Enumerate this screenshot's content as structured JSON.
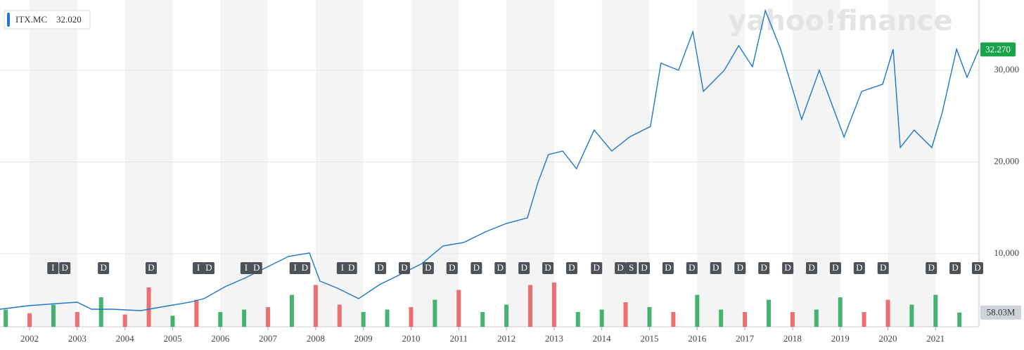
{
  "chart_data": {
    "type": "line",
    "watermark": "yahoo!finance",
    "legend": {
      "name": "ITX.MC",
      "value": {
        "value": 32020,
        "label": "32.020"
      }
    },
    "last_price": {
      "value": 32270,
      "label": "32.270"
    },
    "last_volume": {
      "value": 58.03,
      "label": "58.03M"
    },
    "xlim": [
      2001.38,
      2021.91
    ],
    "xticks": [
      2002,
      2003,
      2004,
      2005,
      2006,
      2007,
      2008,
      2009,
      2010,
      2011,
      2012,
      2013,
      2014,
      2015,
      2016,
      2017,
      2018,
      2019,
      2020,
      2021
    ],
    "ylim": [
      2030,
      37660
    ],
    "yticks": [
      {
        "value": 10000,
        "label": "10,000"
      },
      {
        "value": 20000,
        "label": "20,000"
      },
      {
        "value": 30000,
        "label": "30,000"
      }
    ],
    "grid": true,
    "x": [
      2001.38,
      2001.97,
      2002.56,
      2003.0,
      2003.3,
      2003.74,
      2004.33,
      2004.92,
      2005.36,
      2005.66,
      2006.1,
      2006.54,
      2006.98,
      2007.43,
      2007.87,
      2008.09,
      2008.46,
      2008.9,
      2009.34,
      2009.79,
      2010.23,
      2010.67,
      2011.11,
      2011.56,
      2012.0,
      2012.44,
      2012.66,
      2012.88,
      2013.18,
      2013.47,
      2013.84,
      2014.21,
      2014.58,
      2015.02,
      2015.24,
      2015.61,
      2015.91,
      2016.13,
      2016.57,
      2016.87,
      2017.16,
      2017.43,
      2017.75,
      2018.19,
      2018.56,
      2019.08,
      2019.45,
      2019.89,
      2020.11,
      2020.26,
      2020.55,
      2020.92,
      2021.14,
      2021.44,
      2021.66,
      2021.91
    ],
    "series": [
      {
        "name": "ITX.MC",
        "color": "#1f77c9",
        "values": [
          3946,
          4330,
          4560,
          4710,
          3946,
          3946,
          3790,
          4330,
          4710,
          5100,
          6400,
          7400,
          8540,
          9700,
          10080,
          7010,
          6240,
          5100,
          6630,
          7780,
          8930,
          10840,
          11230,
          12380,
          13300,
          13910,
          17740,
          20800,
          21190,
          19270,
          23480,
          21190,
          22720,
          23870,
          30770,
          30000,
          34210,
          27700,
          30000,
          32680,
          30380,
          36510,
          32300,
          24640,
          30000,
          22720,
          27700,
          28470,
          32300,
          21570,
          23480,
          21570,
          25400,
          32300,
          29230,
          32300
        ]
      }
    ],
    "volume": {
      "vlim": [
        0,
        200
      ],
      "x": [
        2001.5,
        2002.0,
        2002.5,
        2003.0,
        2003.5,
        2004.0,
        2004.5,
        2005.0,
        2005.5,
        2006.0,
        2006.5,
        2007.0,
        2007.5,
        2008.0,
        2008.5,
        2009.0,
        2009.5,
        2010.0,
        2010.5,
        2011.0,
        2011.5,
        2012.0,
        2012.5,
        2013.0,
        2013.5,
        2014.0,
        2014.5,
        2015.0,
        2015.5,
        2016.0,
        2016.5,
        2017.0,
        2017.5,
        2018.0,
        2018.5,
        2019.0,
        2019.5,
        2020.0,
        2020.5,
        2021.0,
        2021.5
      ],
      "values": [
        70,
        55,
        90,
        60,
        120,
        50,
        160,
        45,
        110,
        60,
        70,
        80,
        130,
        170,
        90,
        60,
        70,
        80,
        110,
        150,
        60,
        90,
        170,
        180,
        60,
        70,
        100,
        80,
        60,
        130,
        70,
        60,
        110,
        60,
        70,
        120,
        60,
        110,
        90,
        130,
        58.03
      ],
      "colors": [
        "#26a65b",
        "#e8575a",
        "#26a65b",
        "#e8575a",
        "#26a65b",
        "#e8575a",
        "#e8575a",
        "#26a65b",
        "#e8575a",
        "#26a65b",
        "#26a65b",
        "#e8575a",
        "#26a65b",
        "#e8575a",
        "#e8575a",
        "#26a65b",
        "#26a65b",
        "#e8575a",
        "#26a65b",
        "#e8575a",
        "#26a65b",
        "#26a65b",
        "#e8575a",
        "#e8575a",
        "#26a65b",
        "#26a65b",
        "#e8575a",
        "#26a65b",
        "#e8575a",
        "#26a65b",
        "#26a65b",
        "#e8575a",
        "#26a65b",
        "#e8575a",
        "#26a65b",
        "#26a65b",
        "#e8575a",
        "#e8575a",
        "#26a65b",
        "#26a65b",
        "#26a65b"
      ]
    },
    "events": [
      {
        "x": 2002.49,
        "label": "I"
      },
      {
        "x": 2002.74,
        "label": "D"
      },
      {
        "x": 2003.55,
        "label": "D"
      },
      {
        "x": 2004.55,
        "label": "D"
      },
      {
        "x": 2005.54,
        "label": "I"
      },
      {
        "x": 2005.76,
        "label": "D"
      },
      {
        "x": 2006.54,
        "label": "I"
      },
      {
        "x": 2006.76,
        "label": "D"
      },
      {
        "x": 2007.57,
        "label": "I"
      },
      {
        "x": 2007.77,
        "label": "D"
      },
      {
        "x": 2008.56,
        "label": "I"
      },
      {
        "x": 2008.75,
        "label": "D"
      },
      {
        "x": 2009.36,
        "label": "D"
      },
      {
        "x": 2009.86,
        "label": "D"
      },
      {
        "x": 2010.36,
        "label": "D"
      },
      {
        "x": 2010.86,
        "label": "D"
      },
      {
        "x": 2011.37,
        "label": "D"
      },
      {
        "x": 2011.87,
        "label": "D"
      },
      {
        "x": 2012.37,
        "label": "D"
      },
      {
        "x": 2012.87,
        "label": "D"
      },
      {
        "x": 2013.37,
        "label": "D"
      },
      {
        "x": 2013.89,
        "label": "D"
      },
      {
        "x": 2014.39,
        "label": "D"
      },
      {
        "x": 2014.62,
        "label": "S"
      },
      {
        "x": 2014.89,
        "label": "D"
      },
      {
        "x": 2015.39,
        "label": "D"
      },
      {
        "x": 2015.89,
        "label": "D"
      },
      {
        "x": 2016.39,
        "label": "D"
      },
      {
        "x": 2016.9,
        "label": "D"
      },
      {
        "x": 2017.4,
        "label": "D"
      },
      {
        "x": 2017.9,
        "label": "D"
      },
      {
        "x": 2018.4,
        "label": "D"
      },
      {
        "x": 2018.9,
        "label": "D"
      },
      {
        "x": 2019.4,
        "label": "D"
      },
      {
        "x": 2019.9,
        "label": "D"
      },
      {
        "x": 2020.91,
        "label": "D"
      },
      {
        "x": 2021.41,
        "label": "D"
      },
      {
        "x": 2021.88,
        "label": "D"
      }
    ]
  }
}
